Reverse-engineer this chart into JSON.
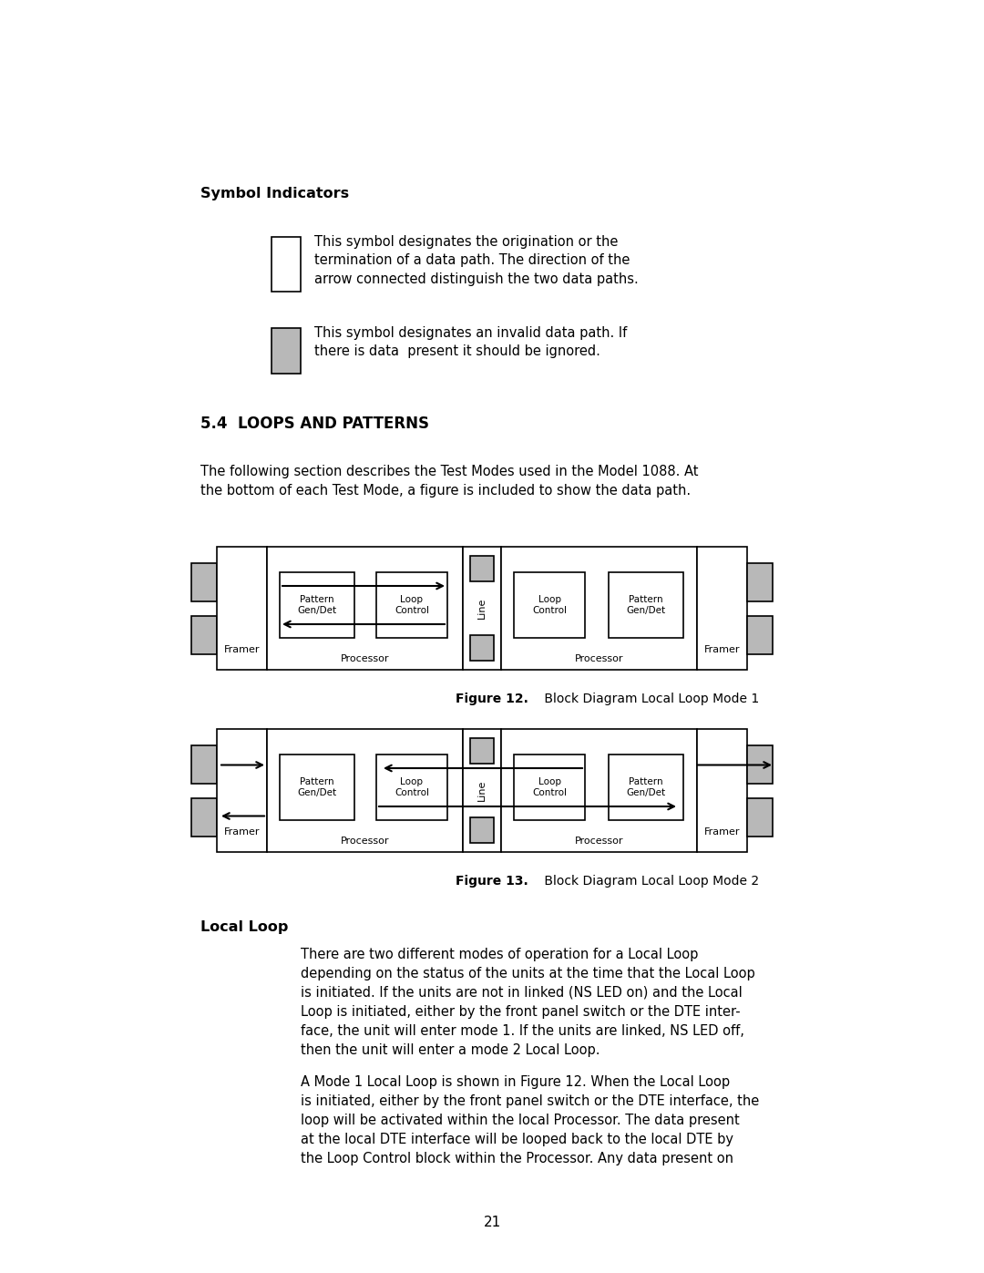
{
  "bg_color": "#ffffff",
  "page_width": 10.8,
  "page_height": 13.97,
  "symbol_indicators_title": "Symbol Indicators",
  "symbol1_text": "This symbol designates the origination or the\ntermination of a data path. The direction of the\narrow connected distinguish the two data paths.",
  "symbol2_text": "This symbol designates an invalid data path. If\nthere is data  present it should be ignored.",
  "section_title": "5.4  LOOPS AND PATTERNS",
  "intro_text": "The following section describes the Test Modes used in the Model 1088. At\nthe bottom of each Test Mode, a figure is included to show the data path.",
  "fig12_caption_bold": "Figure 12.",
  "fig12_caption_normal": " Block Diagram Local Loop Mode 1",
  "fig13_caption_bold": "Figure 13.",
  "fig13_caption_normal": " Block Diagram Local Loop Mode 2",
  "local_loop_title": "Local Loop",
  "local_loop_para1": "There are two different modes of operation for a Local Loop\ndepending on the status of the units at the time that the Local Loop\nis initiated. If the units are not in linked (NS LED on) and the Local\nLoop is initiated, either by the front panel switch or the DTE inter-\nface, the unit will enter mode 1. If the units are linked, NS LED off,\nthen the unit will enter a mode 2 Local Loop.",
  "local_loop_para2": "A Mode 1 Local Loop is shown in Figure 12. When the Local Loop\nis initiated, either by the front panel switch or the DTE interface, the\nloop will be activated within the local Processor. The data present\nat the local DTE interface will be looped back to the local DTE by\nthe Loop Control block within the Processor. Any data present on",
  "page_number": "21",
  "gray_box_color": "#b8b8b8",
  "white_box_color": "#ffffff",
  "box_edge_color": "#000000"
}
